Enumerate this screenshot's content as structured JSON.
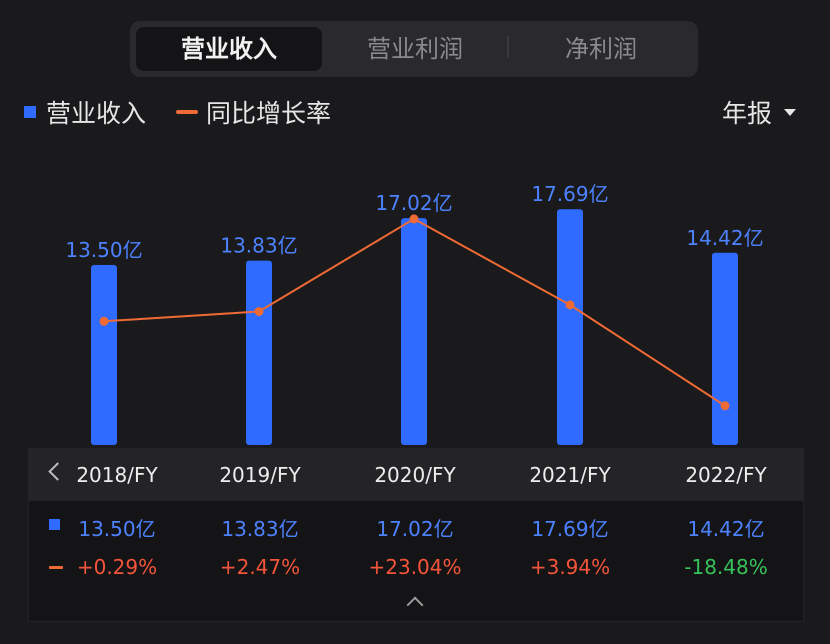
{
  "tabs": [
    {
      "label": "营业收入",
      "active": true
    },
    {
      "label": "营业利润",
      "active": false
    },
    {
      "label": "净利润",
      "active": false
    }
  ],
  "legend": {
    "revenue": "营业收入",
    "growth": "同比增长率"
  },
  "period": {
    "label": "年报"
  },
  "colors": {
    "bar": "#2f6bff",
    "line": "#f06a35",
    "positive": "#f3543b",
    "negative": "#36c25a",
    "value_label": "#4d82ff"
  },
  "chart_data": {
    "type": "bar",
    "categories": [
      "2018/FY",
      "2019/FY",
      "2020/FY",
      "2021/FY",
      "2022/FY"
    ],
    "series": [
      {
        "name": "营业收入",
        "type": "bar",
        "values": [
          13.5,
          13.83,
          17.02,
          17.69,
          14.42
        ],
        "labels": [
          "13.50亿",
          "13.83亿",
          "17.02亿",
          "17.69亿",
          "14.42亿"
        ]
      },
      {
        "name": "同比增长率",
        "type": "line",
        "values": [
          0.29,
          2.47,
          23.04,
          3.94,
          -18.48
        ],
        "labels": [
          "+0.29%",
          "+2.47%",
          "+23.04%",
          "+3.94%",
          "-18.48%"
        ]
      }
    ]
  },
  "table": {
    "headers": [
      "2018/FY",
      "2019/FY",
      "2020/FY",
      "2021/FY",
      "2022/FY"
    ],
    "revenue": [
      "13.50亿",
      "13.83亿",
      "17.02亿",
      "17.69亿",
      "14.42亿"
    ],
    "growth": [
      "+0.29%",
      "+2.47%",
      "+23.04%",
      "+3.94%",
      "-18.48%"
    ]
  }
}
